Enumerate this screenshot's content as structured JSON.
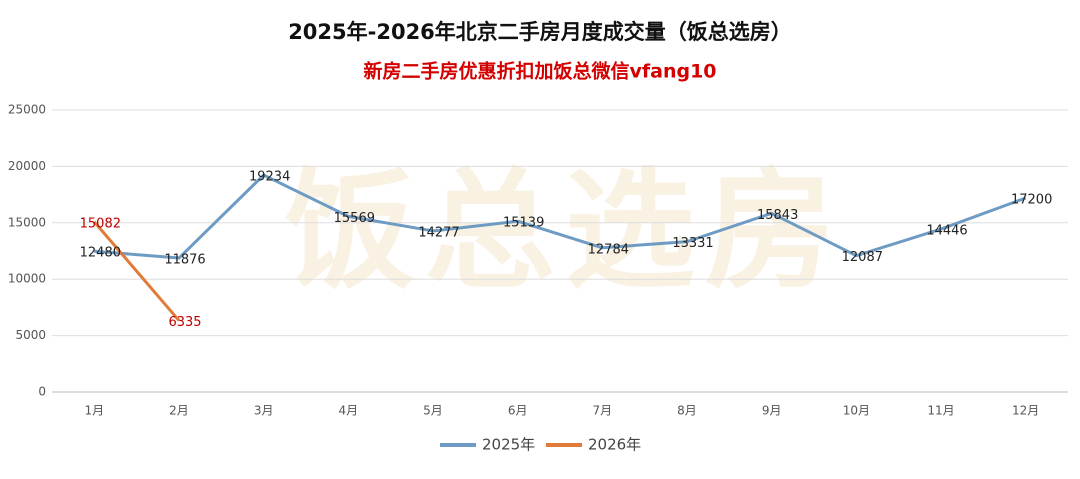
{
  "chart_data": {
    "type": "line",
    "title": "2025年-2026年北京二手房月度成交量（饭总选房）",
    "subtitle": "新房二手房优惠折扣加饭总微信vfang10",
    "watermark": "饭总选房",
    "categories": [
      "1月",
      "2月",
      "3月",
      "4月",
      "5月",
      "6月",
      "7月",
      "8月",
      "9月",
      "10月",
      "11月",
      "12月"
    ],
    "series": [
      {
        "name": "2025年",
        "color": "#6d9bc3",
        "label_color": "#222222",
        "values": [
          12480,
          11876,
          19234,
          15569,
          14277,
          15139,
          12784,
          13331,
          15843,
          12087,
          14446,
          17200
        ]
      },
      {
        "name": "2026年",
        "color": "#e07b39",
        "label_color": "#c00000",
        "values": [
          15082,
          6335,
          null,
          null,
          null,
          null,
          null,
          null,
          null,
          null,
          null,
          null
        ]
      }
    ],
    "ylim": [
      0,
      25000
    ],
    "yticks": [
      0,
      5000,
      10000,
      15000,
      20000,
      25000
    ],
    "grid": true,
    "legend": "bottom"
  }
}
